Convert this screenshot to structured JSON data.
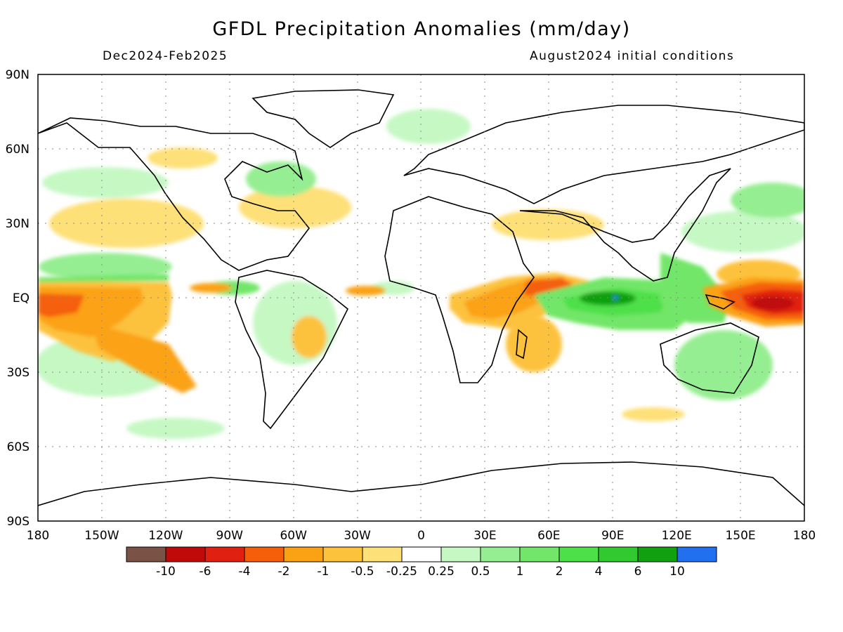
{
  "title": "GFDL Precipitation Anomalies (mm/day)",
  "season": "Dec2024-Feb2025",
  "initial_conditions": "August2024 initial conditions",
  "lat_labels": [
    "90N",
    "60N",
    "30N",
    "EQ",
    "30S",
    "60S",
    "90S"
  ],
  "lat_values": [
    90,
    60,
    30,
    0,
    -30,
    -60,
    -90
  ],
  "lon_labels": [
    "180",
    "150W",
    "120W",
    "90W",
    "60W",
    "30W",
    "0",
    "30E",
    "60E",
    "90E",
    "120E",
    "150E",
    "180"
  ],
  "lon_values": [
    -180,
    -150,
    -120,
    -90,
    -60,
    -30,
    0,
    30,
    60,
    90,
    120,
    150,
    180
  ],
  "colorbar": {
    "colors": [
      "#7a5246",
      "#c00a0a",
      "#e02010",
      "#f55f0a",
      "#fba214",
      "#fdc23c",
      "#fee078",
      "#ffffff",
      "#c6f8c4",
      "#96ee92",
      "#72e668",
      "#4ee048",
      "#32c830",
      "#10a010",
      "#2070f0"
    ],
    "tick_labels": [
      "-10",
      "-6",
      "-4",
      "-2",
      "-1",
      "-0.5",
      "-0.25",
      "0.25",
      "0.5",
      "1",
      "2",
      "4",
      "6",
      "10"
    ]
  },
  "anomaly_regions": [
    {
      "name": "pacific-equatorial-dry",
      "level": -2,
      "color": "#f55f0a"
    },
    {
      "name": "west-pacific-dry",
      "level": -6,
      "color": "#c00a0a"
    },
    {
      "name": "indian-ocean-wet",
      "level": 6,
      "color": "#10a010"
    },
    {
      "name": "east-africa-dry",
      "level": -2,
      "color": "#f55f0a"
    }
  ]
}
